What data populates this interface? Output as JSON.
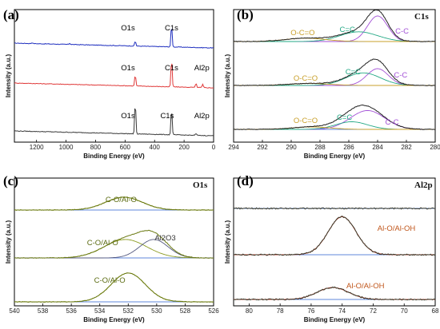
{
  "chart_data": [
    {
      "id": "a",
      "type": "line",
      "panel_label": "(a)",
      "xlabel": "Binding Energy (eV)",
      "ylabel": "Intensity (a.u.)",
      "xlim": [
        1350,
        0
      ],
      "x_ticks": [
        1200,
        1000,
        800,
        600,
        400,
        200,
        0
      ],
      "series": [
        {
          "color": "#1f2fbf",
          "peaks": [
            {
              "x": 531,
              "h": 0.22
            },
            {
              "x": 285,
              "h": 1.0
            },
            {
              "x": 975,
              "h": 0.05
            },
            {
              "x": 1230,
              "h": 0.04
            }
          ]
        },
        {
          "color": "#e03a3a",
          "peaks": [
            {
              "x": 531,
              "h": 0.35
            },
            {
              "x": 285,
              "h": 0.9
            },
            {
              "x": 119,
              "h": 0.12
            },
            {
              "x": 74,
              "h": 0.1
            }
          ]
        },
        {
          "color": "#3a3a3a",
          "peaks": [
            {
              "x": 531,
              "h": 0.9
            },
            {
              "x": 285,
              "h": 0.75
            },
            {
              "x": 119,
              "h": 0.05
            }
          ]
        }
      ],
      "annotations": [
        {
          "text": "C1s",
          "color": "#000",
          "x": 285,
          "series": 0
        },
        {
          "text": "O1s",
          "color": "#000",
          "x": 580,
          "series": 0
        },
        {
          "text": "C1s",
          "color": "#000",
          "x": 285,
          "series": 1
        },
        {
          "text": "O1s",
          "color": "#000",
          "x": 580,
          "series": 1
        },
        {
          "text": "Al2p",
          "color": "#000",
          "x": 80,
          "series": 1
        },
        {
          "text": "O1s",
          "color": "#000",
          "x": 580,
          "series": 2
        },
        {
          "text": "C1s",
          "color": "#000",
          "x": 315,
          "series": 2
        },
        {
          "text": "Al2p",
          "color": "#000",
          "x": 80,
          "series": 2
        }
      ]
    },
    {
      "id": "b",
      "type": "line",
      "panel_label": "(b)",
      "title": "C1s",
      "xlabel": "Binding Energy (eV)",
      "ylabel": "Intensity (a.u.)",
      "xlim": [
        294,
        280
      ],
      "x_ticks": [
        294,
        292,
        290,
        288,
        286,
        284,
        282,
        280
      ],
      "stacks": [
        {
          "components": [
            {
              "name": "C-C",
              "center": 284.0,
              "width": 0.7,
              "height": 1.0,
              "color": "#a24fd6"
            },
            {
              "name": "C=C",
              "center": 285.3,
              "width": 1.3,
              "height": 0.38,
              "color": "#22a884"
            },
            {
              "name": "O-C=O",
              "center": 289.0,
              "width": 1.4,
              "height": 0.13,
              "color": "#c9a02b"
            }
          ]
        },
        {
          "components": [
            {
              "name": "C-C",
              "center": 284.0,
              "width": 0.75,
              "height": 0.6,
              "color": "#a24fd6"
            },
            {
              "name": "C=C",
              "center": 285.0,
              "width": 1.2,
              "height": 0.45,
              "color": "#22a884"
            },
            {
              "name": "O-C=O",
              "center": 288.7,
              "width": 1.4,
              "height": 0.07,
              "color": "#c9a02b"
            }
          ]
        },
        {
          "components": [
            {
              "name": "C-C",
              "center": 284.7,
              "width": 1.2,
              "height": 0.62,
              "color": "#a24fd6"
            },
            {
              "name": "C=C",
              "center": 285.8,
              "width": 1.1,
              "height": 0.25,
              "color": "#22a884"
            },
            {
              "name": "O-C=O",
              "center": 288.6,
              "width": 1.3,
              "height": 0.08,
              "color": "#c9a02b"
            }
          ]
        }
      ],
      "labels": [
        {
          "text": "O-C=O",
          "color": "#c9a02b",
          "x": 289.2,
          "stack": 0,
          "dy": -8
        },
        {
          "text": "C=C",
          "color": "#22a884",
          "x": 286.1,
          "stack": 0,
          "dy": -12
        },
        {
          "text": "C-C",
          "color": "#a24fd6",
          "x": 282.3,
          "stack": 0,
          "dy": -10
        },
        {
          "text": "C=C",
          "color": "#22a884",
          "x": 285.7,
          "stack": 1,
          "dy": -14
        },
        {
          "text": "O-C=O",
          "color": "#c9a02b",
          "x": 289.0,
          "stack": 1,
          "dy": -6
        },
        {
          "text": "C-C",
          "color": "#a24fd6",
          "x": 282.4,
          "stack": 1,
          "dy": -10
        },
        {
          "text": "O-C=O",
          "color": "#c9a02b",
          "x": 289.0,
          "stack": 2,
          "dy": -8
        },
        {
          "text": "C=C",
          "color": "#22a884",
          "x": 286.3,
          "stack": 2,
          "dy": -12
        },
        {
          "text": "C-C",
          "color": "#a24fd6",
          "x": 283.0,
          "stack": 2,
          "dy": -6
        }
      ]
    },
    {
      "id": "c",
      "type": "line",
      "panel_label": "(c)",
      "title": "O1s",
      "xlabel": "Binding Energy (eV)",
      "ylabel": "Intensity (a.u.)",
      "xlim": [
        540,
        526
      ],
      "x_ticks": [
        540,
        538,
        536,
        534,
        532,
        530,
        528,
        526
      ],
      "stacks": [
        {
          "components": [
            {
              "name": "C-O/Al-O",
              "center": 532.3,
              "width": 1.3,
              "height": 0.5,
              "color": "#8a9a1f"
            }
          ]
        },
        {
          "components": [
            {
              "name": "C-O/Al-O",
              "center": 532.2,
              "width": 1.5,
              "height": 0.55,
              "color": "#8a9a1f"
            },
            {
              "name": "Al2O3",
              "center": 530.2,
              "width": 1.0,
              "height": 0.55,
              "color": "#555a80"
            }
          ]
        },
        {
          "components": [
            {
              "name": "C-O/Al-O",
              "center": 532.0,
              "width": 1.2,
              "height": 0.95,
              "color": "#8a9a1f"
            }
          ]
        }
      ],
      "labels": [
        {
          "text": "C-O/Al-O",
          "color": "#5a6a10",
          "x": 532.5,
          "stack": 0,
          "dy": -10
        },
        {
          "text": "C-O/Al-O",
          "color": "#5a6a10",
          "x": 533.8,
          "stack": 1,
          "dy": -16
        },
        {
          "text": "Al2O3",
          "color": "#333",
          "x": 529.4,
          "stack": 1,
          "dy": -22
        },
        {
          "text": "C-O/Al-O",
          "color": "#5a6a10",
          "x": 533.3,
          "stack": 2,
          "dy": -24
        }
      ]
    },
    {
      "id": "d",
      "type": "line",
      "panel_label": "(d)",
      "title": "Al2p",
      "xlabel": "Binding Energy (eV)",
      "ylabel": "Intensity (a.u.)",
      "xlim": [
        81,
        68
      ],
      "x_ticks": [
        80,
        78,
        76,
        74,
        72,
        70,
        68
      ],
      "stacks": [
        {
          "components": [
            {
              "name": "",
              "center": 74,
              "width": 1.2,
              "height": 0.0,
              "color": "#333"
            }
          ]
        },
        {
          "components": [
            {
              "name": "Al-O/Al-OH",
              "center": 74.0,
              "width": 0.9,
              "height": 0.95,
              "color": "#c0392b"
            }
          ]
        },
        {
          "components": [
            {
              "name": "Al-O/Al-OH",
              "center": 74.6,
              "width": 1.0,
              "height": 0.3,
              "color": "#c0392b"
            }
          ]
        }
      ],
      "labels": [
        {
          "text": "Al-O/Al-OH",
          "color": "#c0561b",
          "x": 70.5,
          "stack": 1,
          "dy": -30
        },
        {
          "text": "Al-O/Al-OH",
          "color": "#c0561b",
          "x": 72.5,
          "stack": 2,
          "dy": -14
        }
      ]
    }
  ]
}
